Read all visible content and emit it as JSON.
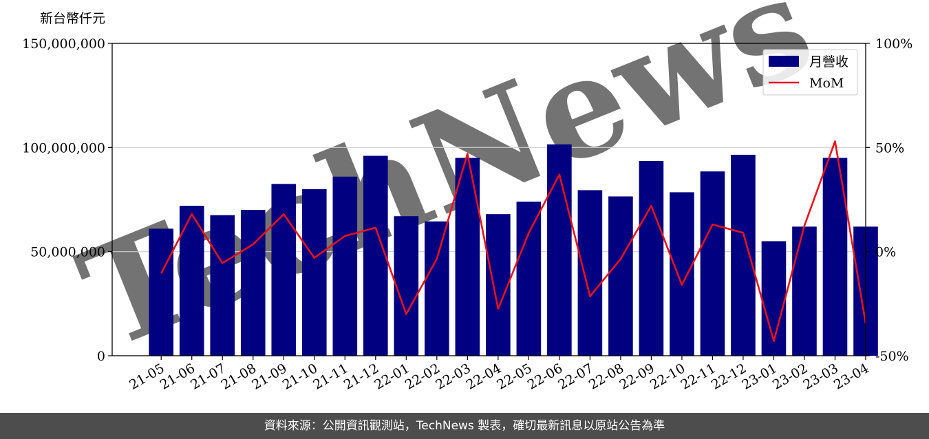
{
  "chart_data": {
    "type": "bar",
    "unit_label": "新台幣仟元",
    "categories": [
      "21-05",
      "21-06",
      "21-07",
      "21-08",
      "21-09",
      "21-10",
      "21-11",
      "21-12",
      "22-01",
      "22-02",
      "22-03",
      "22-04",
      "22-05",
      "22-06",
      "22-07",
      "22-08",
      "22-09",
      "22-10",
      "22-11",
      "22-12",
      "23-01",
      "23-02",
      "23-03",
      "23-04"
    ],
    "series": [
      {
        "name": "月營收",
        "type": "bar",
        "axis": "left",
        "color": "#000080",
        "values": [
          61000000,
          72000000,
          67500000,
          70000000,
          82500000,
          80000000,
          86000000,
          96000000,
          67000000,
          64500000,
          95000000,
          68000000,
          74000000,
          101500000,
          79500000,
          76500000,
          93500000,
          78500000,
          88500000,
          96500000,
          55000000,
          62000000,
          95000000,
          62000000
        ]
      },
      {
        "name": "MoM",
        "type": "line",
        "axis": "right",
        "color": "#e8111a",
        "values": [
          -10.5,
          18,
          -5.5,
          3.5,
          18,
          -3,
          7.5,
          11.5,
          -30,
          -3.5,
          47,
          -27.5,
          9,
          37,
          -21.5,
          -3.5,
          22,
          -16,
          13,
          9,
          -43,
          12.5,
          53,
          -34.5
        ]
      }
    ],
    "y_left": {
      "range": [
        0,
        150000000
      ],
      "ticks": [
        0,
        50000000,
        100000000,
        150000000
      ],
      "tick_labels": [
        "0",
        "50,000,000",
        "100,000,000",
        "150,000,000"
      ]
    },
    "y_right": {
      "range": [
        -50,
        100
      ],
      "ticks": [
        -50,
        0,
        50,
        100
      ],
      "tick_labels": [
        "-50%",
        "0%",
        "50%",
        "100%"
      ]
    },
    "grid": "horizontal",
    "legend": "top-right",
    "watermark": "TechNews"
  },
  "footer": {
    "text": "資料來源：公開資訊觀測站，TechNews 製表，確切最新訊息以原站公告為準"
  }
}
